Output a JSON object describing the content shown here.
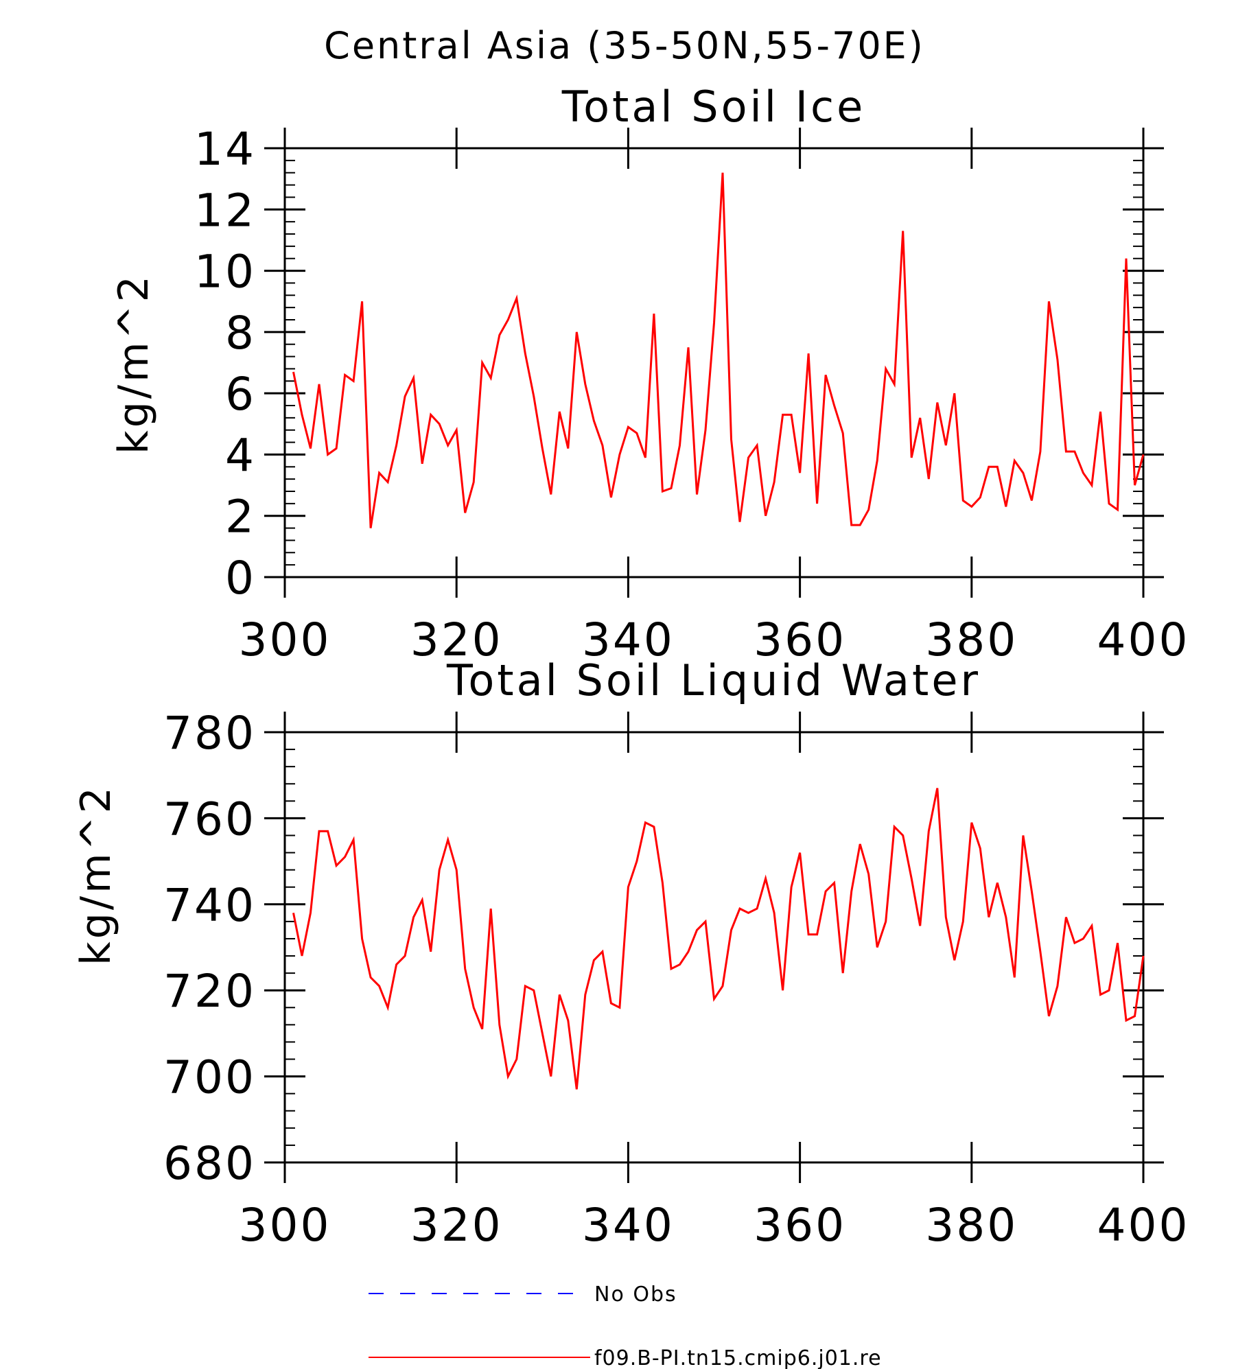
{
  "main_title": "Central Asia (35-50N,55-70E)",
  "colors": {
    "model": "#ff0000",
    "obs": "#0000ff",
    "axis": "#000000"
  },
  "legend": [
    {
      "label": "No Obs",
      "color": "#0000ff",
      "style": "dashed"
    },
    {
      "label": "f09.B-PI.tn15.cmip6.j01.re",
      "color": "#ff0000",
      "style": "solid"
    }
  ],
  "chart_data": [
    {
      "type": "line",
      "title": "Total Soil Ice",
      "xlabel": "",
      "ylabel": "kg/m^2",
      "xlim": [
        300,
        400
      ],
      "ylim": [
        0,
        14
      ],
      "x_ticks": [
        300,
        320,
        340,
        360,
        380,
        400
      ],
      "y_ticks": [
        0,
        2,
        4,
        6,
        8,
        10,
        12,
        14
      ],
      "grid": false,
      "series": [
        {
          "name": "f09.B-PI.tn15.cmip6.j01.re",
          "x": [
            301,
            302,
            303,
            304,
            305,
            306,
            307,
            308,
            309,
            310,
            311,
            312,
            313,
            314,
            315,
            316,
            317,
            318,
            319,
            320,
            321,
            322,
            323,
            324,
            325,
            326,
            327,
            328,
            329,
            330,
            331,
            332,
            333,
            334,
            335,
            336,
            337,
            338,
            339,
            340,
            341,
            342,
            343,
            344,
            345,
            346,
            347,
            348,
            349,
            350,
            351,
            352,
            353,
            354,
            355,
            356,
            357,
            358,
            359,
            360,
            361,
            362,
            363,
            364,
            365,
            366,
            367,
            368,
            369,
            370,
            371,
            372,
            373,
            374,
            375,
            376,
            377,
            378,
            379,
            380,
            381,
            382,
            383,
            384,
            385,
            386,
            387,
            388,
            389,
            390,
            391,
            392,
            393,
            394,
            395,
            396,
            397,
            398,
            399,
            400
          ],
          "y": [
            6.7,
            5.3,
            4.2,
            6.3,
            4.0,
            4.2,
            6.6,
            6.4,
            9.0,
            1.6,
            3.4,
            3.1,
            4.3,
            5.9,
            6.5,
            3.7,
            5.3,
            5.0,
            4.3,
            4.8,
            2.1,
            3.1,
            7.0,
            6.5,
            7.9,
            8.4,
            9.1,
            7.3,
            5.9,
            4.2,
            2.7,
            5.4,
            4.2,
            8.0,
            6.3,
            5.1,
            4.3,
            2.6,
            4.0,
            4.9,
            4.7,
            3.9,
            8.6,
            2.8,
            2.9,
            4.3,
            7.5,
            2.7,
            4.8,
            8.3,
            13.2,
            4.5,
            1.8,
            3.9,
            4.3,
            2.0,
            3.1,
            5.3,
            5.3,
            3.4,
            7.3,
            2.4,
            6.6,
            5.6,
            4.7,
            1.7,
            1.7,
            2.2,
            3.8,
            6.8,
            6.3,
            11.3,
            3.9,
            5.2,
            3.2,
            5.7,
            4.3,
            6.0,
            2.5,
            2.3,
            2.6,
            3.6,
            3.6,
            2.3,
            3.8,
            3.4,
            2.5,
            4.1,
            9.0,
            7.1,
            4.1,
            4.1,
            3.4,
            3.0,
            5.4,
            2.4,
            2.2,
            10.4,
            3.0,
            4.0
          ]
        }
      ]
    },
    {
      "type": "line",
      "title": "Total Soil Liquid Water",
      "xlabel": "",
      "ylabel": "kg/m^2",
      "xlim": [
        300,
        400
      ],
      "ylim": [
        680,
        780
      ],
      "x_ticks": [
        300,
        320,
        340,
        360,
        380,
        400
      ],
      "y_ticks": [
        680,
        700,
        720,
        740,
        760,
        780
      ],
      "grid": false,
      "series": [
        {
          "name": "f09.B-PI.tn15.cmip6.j01.re",
          "x": [
            301,
            302,
            303,
            304,
            305,
            306,
            307,
            308,
            309,
            310,
            311,
            312,
            313,
            314,
            315,
            316,
            317,
            318,
            319,
            320,
            321,
            322,
            323,
            324,
            325,
            326,
            327,
            328,
            329,
            330,
            331,
            332,
            333,
            334,
            335,
            336,
            337,
            338,
            339,
            340,
            341,
            342,
            343,
            344,
            345,
            346,
            347,
            348,
            349,
            350,
            351,
            352,
            353,
            354,
            355,
            356,
            357,
            358,
            359,
            360,
            361,
            362,
            363,
            364,
            365,
            366,
            367,
            368,
            369,
            370,
            371,
            372,
            373,
            374,
            375,
            376,
            377,
            378,
            379,
            380,
            381,
            382,
            383,
            384,
            385,
            386,
            387,
            388,
            389,
            390,
            391,
            392,
            393,
            394,
            395,
            396,
            397,
            398,
            399,
            400
          ],
          "y": [
            738,
            728,
            738,
            757,
            757,
            749,
            751,
            755,
            732,
            723,
            721,
            716,
            726,
            728,
            737,
            741,
            729,
            748,
            755,
            748,
            725,
            716,
            711,
            739,
            712,
            700,
            704,
            721,
            720,
            710,
            700,
            719,
            713,
            697,
            719,
            727,
            729,
            717,
            716,
            744,
            750,
            759,
            758,
            745,
            725,
            726,
            729,
            734,
            736,
            718,
            721,
            734,
            739,
            738,
            739,
            746,
            738,
            720,
            744,
            752,
            733,
            733,
            743,
            745,
            724,
            743,
            754,
            747,
            730,
            736,
            758,
            756,
            746,
            735,
            757,
            767,
            737,
            727,
            736,
            759,
            753,
            737,
            745,
            737,
            723,
            756,
            743,
            729,
            714,
            721,
            737,
            731,
            732,
            735,
            719,
            720,
            731,
            713,
            714,
            728
          ]
        }
      ]
    }
  ]
}
